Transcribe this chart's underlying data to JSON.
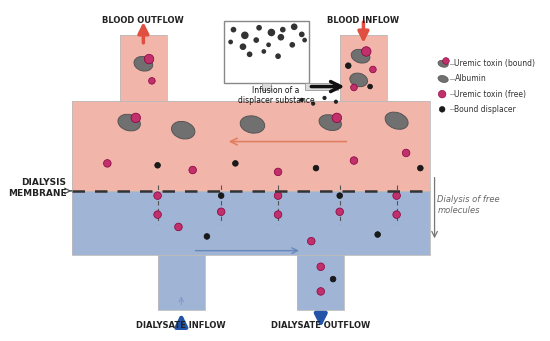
{
  "bg_color": "#ffffff",
  "blood_color": "#f2b5aa",
  "dialysate_color": "#a0b4d5",
  "albumin_color": "#707070",
  "toxin_color": "#c0306a",
  "displacer_color": "#1a1a1a",
  "arrow_red_color": "#e05040",
  "arrow_blue_color": "#2255aa",
  "flow_orange_color": "#e08060",
  "flow_blue_color": "#6688bb",
  "membrane_color": "#444444",
  "legend_line_color": "#999999",
  "text_color": "#222222",
  "text_gray": "#666666",
  "labels": {
    "blood_outflow": "BLOOD OUTFLOW",
    "blood_inflow": "BLOOD INFLOW",
    "dialysate_inflow": "DIALYSATE INFLOW",
    "dialysate_outflow": "DIALYSATE OUTFLOW",
    "membrane": "DIALYSIS\nMEMBRANE",
    "dialysis_free": "Dialysis of free\nmolecules",
    "infusion_title": "Infusion of a\ndisplacer substance"
  },
  "legend": [
    {
      "label": "Uremic toxin (bound)",
      "type": "bound"
    },
    {
      "label": "Albumin",
      "type": "albumin"
    },
    {
      "label": "Uremic toxin (free)",
      "type": "free"
    },
    {
      "label": "Bound displacer",
      "type": "displacer"
    }
  ]
}
